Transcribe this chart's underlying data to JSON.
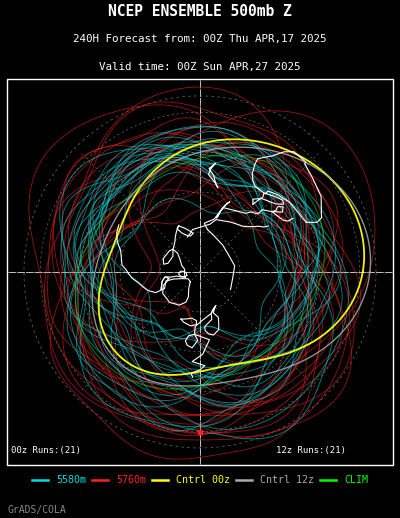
{
  "title_line1": "NCEP ENSEMBLE 500mb Z",
  "title_line2": "240H Forecast from: 00Z Thu APR,17 2025",
  "title_line3": "Valid time: 00Z Sun APR,27 2025",
  "bg_color": "#000000",
  "text_color": "#ffffff",
  "map_border_color": "#ffffff",
  "cyan_color": "#00dddd",
  "red_color": "#ff2020",
  "yellow_color": "#ffff00",
  "gray_color": "#aaaaaa",
  "green_color": "#00ff00",
  "label_00z": "00z Runs:(21)",
  "label_12z": "12z Runs:(21)",
  "legend_items": [
    {
      "color": "#00dddd",
      "label": "5580m"
    },
    {
      "color": "#ff2020",
      "label": "5760m"
    },
    {
      "color": "#ffff00",
      "label": "Cntrl 00z"
    },
    {
      "color": "#aaaaaa",
      "label": "Cntrl 12z"
    },
    {
      "color": "#00ff00",
      "label": "CLIM"
    }
  ],
  "credit": "GrADS/COLA",
  "num_cyan_members": 21,
  "num_red_members": 21
}
